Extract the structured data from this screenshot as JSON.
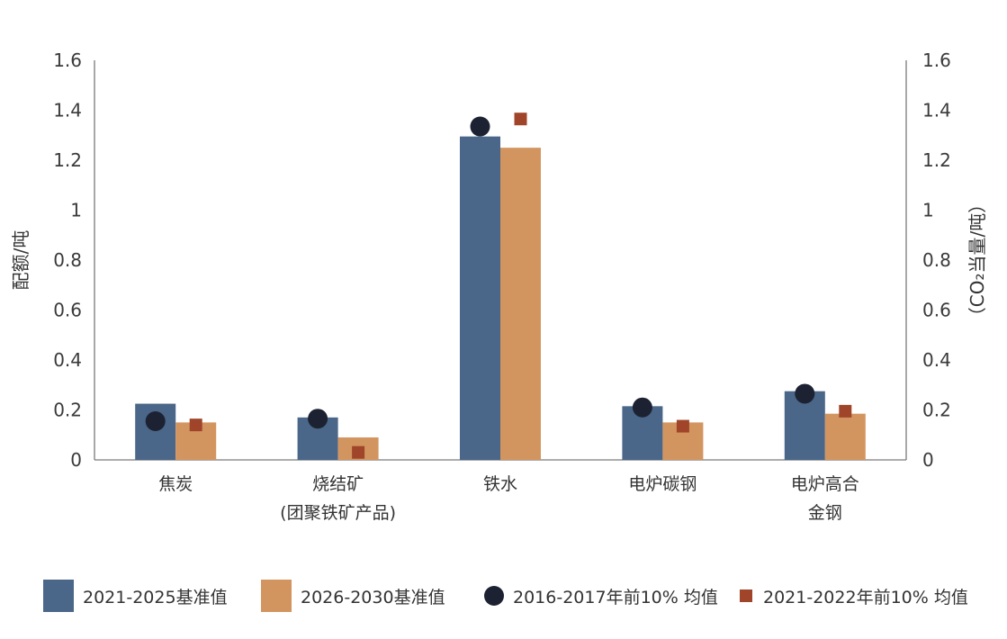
{
  "chart_data": {
    "type": "bar",
    "categories": [
      [
        "焦炭"
      ],
      [
        "烧结矿",
        "(团聚铁矿产品)"
      ],
      [
        "铁水"
      ],
      [
        "电炉碳钢"
      ],
      [
        "电炉高合",
        "金钢"
      ]
    ],
    "ylabel_left": "配额/吨",
    "ylabel_right": "（CO₂当量/吨）",
    "ylim": [
      0,
      1.6
    ],
    "yticks": [
      "0",
      "0.2",
      "0.4",
      "0.6",
      "0.8",
      "1",
      "1.2",
      "1.4",
      "1.6"
    ],
    "grid": false,
    "legend_position": "bottom",
    "series": [
      {
        "name": "2021-2025基准值",
        "kind": "bar",
        "color": "#4a6688",
        "values": [
          0.225,
          0.17,
          1.295,
          0.215,
          0.275
        ]
      },
      {
        "name": "2026-2030基准值",
        "kind": "bar",
        "color": "#d39560",
        "values": [
          0.15,
          0.09,
          1.25,
          0.15,
          0.185
        ]
      },
      {
        "name": "2016-2017年前10% 均值",
        "kind": "point-circle",
        "color": "#1d2233",
        "values": [
          0.155,
          0.165,
          1.335,
          0.21,
          0.265
        ]
      },
      {
        "name": "2021-2022年前10% 均值",
        "kind": "point-square",
        "color": "#a0442a",
        "values": [
          0.14,
          0.03,
          1.365,
          0.135,
          0.195
        ]
      }
    ]
  }
}
